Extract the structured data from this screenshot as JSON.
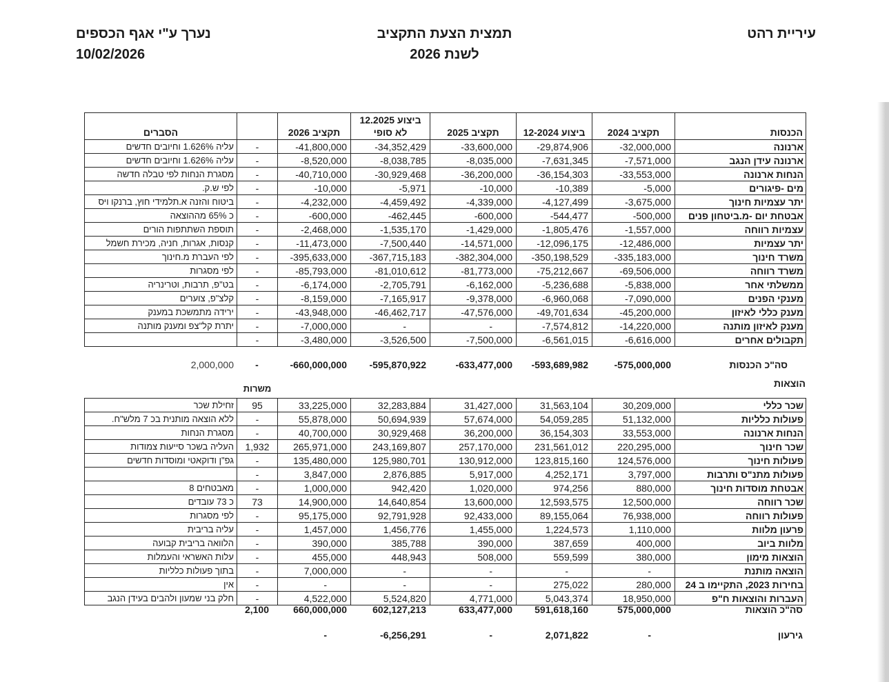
{
  "document": {
    "org": "עיריית רהט",
    "title": "תמצית הצעת התקציב",
    "subtitle": "לשנת 2026",
    "prepared_by": "נערך ע\"י אגף הכספים",
    "date": "10/02/2026"
  },
  "columns": {
    "income_label": "הכנסות",
    "budget_2024": "תקציב 2024",
    "actual_2024": "ביצוע 12-2024",
    "budget_2025": "תקציב 2025",
    "actual_2025": "ביצוע 12.2025",
    "actual_2025_sub": "לא סופי",
    "budget_2026": "תקציב 2026",
    "staff": "משרות",
    "notes": "הסברים"
  },
  "income": {
    "rows": [
      {
        "label": "ארנונה",
        "values": [
          "-32,000,000",
          "-29,874,906",
          "-33,600,000",
          "-34,352,429",
          "-41,800,000"
        ],
        "staff": "-",
        "note": "עליה 1.626% וחיובים חדשים"
      },
      {
        "label": "ארנונה עידן הנגב",
        "values": [
          "-7,571,000",
          "-7,631,345",
          "-8,035,000",
          "-8,038,785",
          "-8,520,000"
        ],
        "staff": "-",
        "note": "עליה 1.626% וחיובים חדשים"
      },
      {
        "label": "הנחות ארנונה",
        "values": [
          "-33,553,000",
          "-36,154,303",
          "-36,200,000",
          "-30,929,468",
          "-40,710,000"
        ],
        "staff": "-",
        "note": "מסגרת הנחות לפי טבלה חדשה"
      },
      {
        "label": "מים -פיגורים",
        "values": [
          "-5,000",
          "-10,389",
          "-10,000",
          "-5,971",
          "-10,000"
        ],
        "staff": "-",
        "note": "לפי ש.ק."
      },
      {
        "label": "יתר עצמיות חינוך",
        "values": [
          "-3,675,000",
          "-4,127,499",
          "-4,339,000",
          "-4,459,492",
          "-4,232,000"
        ],
        "staff": "-",
        "note": "ביטוח והזנה א.תלמידי חוץ, ברנקו ויס"
      },
      {
        "label": "אבטחת יום -מ.ביטחון פנים",
        "values": [
          "-500,000",
          "-544,477",
          "-600,000",
          "-462,445",
          "-600,000"
        ],
        "staff": "-",
        "note": "כ 65% מההוצאה"
      },
      {
        "label": "עצמיות רווחה",
        "values": [
          "-1,557,000",
          "-1,805,476",
          "-1,429,000",
          "-1,535,170",
          "-2,468,000"
        ],
        "staff": "-",
        "note": "תוספת השתתפות הורים"
      },
      {
        "label": "יתר עצמיות",
        "values": [
          "-12,486,000",
          "-12,096,175",
          "-14,571,000",
          "-7,500,440",
          "-11,473,000"
        ],
        "staff": "-",
        "note": "קנסות, אגרות, חניה, מכירת חשמל"
      },
      {
        "label": "משרד חינוך",
        "values": [
          "-335,183,000",
          "-350,198,529",
          "-382,304,000",
          "-367,715,183",
          "-395,633,000"
        ],
        "staff": "-",
        "note": "לפי העברת מ.חינוך"
      },
      {
        "label": "משרד רווחה",
        "values": [
          "-69,506,000",
          "-75,212,667",
          "-81,773,000",
          "-81,010,612",
          "-85,793,000"
        ],
        "staff": "-",
        "note": "לפי מסגרות"
      },
      {
        "label": "ממשלתי אחר",
        "values": [
          "-5,838,000",
          "-5,236,688",
          "-6,162,000",
          "-2,705,791",
          "-6,174,000"
        ],
        "staff": "-",
        "note": "בט\"פ, תרבות, וטרינריה"
      },
      {
        "label": "מענקי הפנים",
        "values": [
          "-7,090,000",
          "-6,960,068",
          "-9,378,000",
          "-7,165,917",
          "-8,159,000"
        ],
        "staff": "-",
        "note": "קלצ\"פ, צוערים"
      },
      {
        "label": "מענק כללי לאיזון",
        "values": [
          "-45,200,000",
          "-49,701,634",
          "-47,576,000",
          "-46,462,717",
          "-43,948,000"
        ],
        "staff": "-",
        "note": "ירידה מתמשכת במענק"
      },
      {
        "label": "מענק לאיזון מותנה",
        "values": [
          "-14,220,000",
          "-7,574,812",
          "-",
          "-",
          "-7,000,000"
        ],
        "staff": "-",
        "note": "יתרת קל\"צפ ומענק מותנה"
      },
      {
        "label": "תקבולים אחרים",
        "values": [
          "-6,616,000",
          "-6,561,015",
          "-7,500,000",
          "-3,526,500",
          "-3,480,000"
        ],
        "staff": "-",
        "note": ""
      }
    ],
    "total": {
      "label": "סה\"כ הכנסות",
      "values": [
        "-575,000,000",
        "-593,689,982",
        "-633,477,000",
        "-595,870,922",
        "-660,000,000"
      ],
      "staff": "-",
      "note": "2,000,000"
    }
  },
  "expenses": {
    "section_label": "הוצאות",
    "rows": [
      {
        "label": "שכר כללי",
        "values": [
          "30,209,000",
          "31,563,104",
          "31,427,000",
          "32,283,884",
          "33,225,000"
        ],
        "staff": "95",
        "note": "זחילת שכר"
      },
      {
        "label": "פעולות כלליות",
        "values": [
          "51,132,000",
          "54,059,285",
          "57,674,000",
          "50,694,939",
          "55,878,000"
        ],
        "staff": "-",
        "note": "ללא הוצאה מותנית בכ 7 מלש\"ח."
      },
      {
        "label": "הנחות ארנונה",
        "values": [
          "33,553,000",
          "36,154,303",
          "36,200,000",
          "30,929,468",
          "40,700,000"
        ],
        "staff": "-",
        "note": "מסגרת הנחות"
      },
      {
        "label": "שכר חינוך",
        "values": [
          "220,295,000",
          "231,561,012",
          "257,170,000",
          "243,169,807",
          "265,971,000"
        ],
        "staff": "1,932",
        "note": "העליה בשכר סייעות צמודות"
      },
      {
        "label": "פעולות חינוך",
        "values": [
          "124,576,000",
          "123,815,160",
          "130,912,000",
          "125,980,701",
          "135,480,000"
        ],
        "staff": "-",
        "note": "גפ\"ן ודוקאטי ומוסדות חדשים"
      },
      {
        "label": "פעולות מתנ\"ס ותרבות",
        "values": [
          "3,797,000",
          "4,252,171",
          "5,917,000",
          "2,876,885",
          "3,847,000"
        ],
        "staff": "-",
        "note": ""
      },
      {
        "label": "אבטחת מוסדות חינוך",
        "values": [
          "880,000",
          "974,256",
          "1,020,000",
          "942,420",
          "1,000,000"
        ],
        "staff": "-",
        "note": "מאבטחים 8"
      },
      {
        "label": "שכר רווחה",
        "values": [
          "12,500,000",
          "12,593,575",
          "13,600,000",
          "14,640,854",
          "14,900,000"
        ],
        "staff": "73",
        "note": "כ 73 עובדים"
      },
      {
        "label": "פעולות רווחה",
        "values": [
          "76,938,000",
          "89,155,064",
          "92,433,000",
          "92,791,928",
          "95,175,000"
        ],
        "staff": "-",
        "note": "לפי מסגרות"
      },
      {
        "label": "פרעון מלוות",
        "values": [
          "1,110,000",
          "1,224,573",
          "1,455,000",
          "1,456,776",
          "1,457,000"
        ],
        "staff": "-",
        "note": "עליה בריבית"
      },
      {
        "label": "מלוות ביוב",
        "values": [
          "400,000",
          "387,659",
          "390,000",
          "385,788",
          "390,000"
        ],
        "staff": "-",
        "note": "הלוואה בריבית קבועה"
      },
      {
        "label": "הוצאות מימון",
        "values": [
          "380,000",
          "559,599",
          "508,000",
          "448,943",
          "455,000"
        ],
        "staff": "-",
        "note": "עלות האשראי והעמלות"
      },
      {
        "label": "הוצאה מותנת",
        "values": [
          "-",
          "-",
          "-",
          "-",
          "7,000,000"
        ],
        "staff": "-",
        "note": "בתוך פעולות כלליות"
      },
      {
        "label": "בחירות 2023, התקיימו ב 24",
        "values": [
          "280,000",
          "275,022",
          "-",
          "-",
          "-"
        ],
        "staff": "-",
        "note": "אין"
      },
      {
        "label": "העברות והוצאות ח\"פ",
        "values": [
          "18,950,000",
          "5,043,374",
          "4,771,000",
          "5,524,820",
          "4,522,000"
        ],
        "staff": "-",
        "note": "חלק בני שמעון ולהבים בעידן הנגב"
      }
    ],
    "total": {
      "label": "סה\"כ הוצאות",
      "values": [
        "575,000,000",
        "591,618,160",
        "633,477,000",
        "602,127,213",
        "660,000,000"
      ],
      "staff": "2,100",
      "note": ""
    }
  },
  "deficit": {
    "label": "גירעון",
    "values": [
      "-",
      "2,071,822",
      "-",
      "-6,256,291",
      "-"
    ],
    "staff": "",
    "note": ""
  }
}
